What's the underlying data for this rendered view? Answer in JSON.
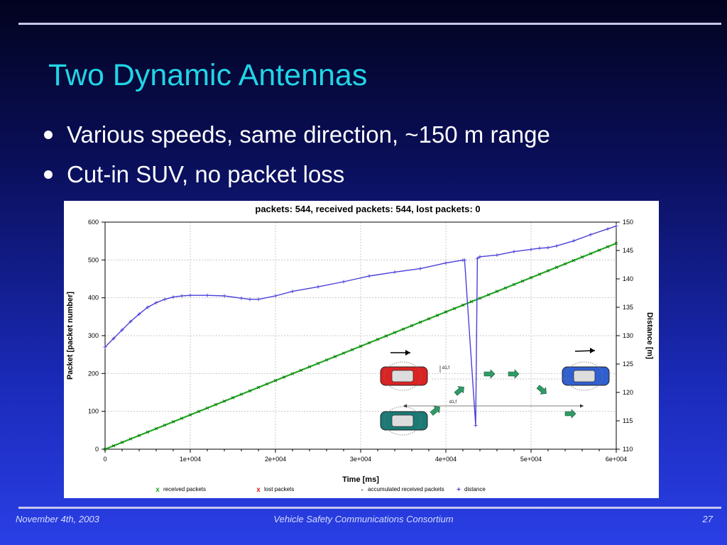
{
  "slide": {
    "title": "Two Dynamic Antennas",
    "bullets": [
      "Various speeds, same direction, ~150 m range",
      "Cut-in SUV, no packet loss"
    ]
  },
  "footer": {
    "date": "November 4th, 2003",
    "org": "Vehicle Safety Communications Consortium",
    "page": "27"
  },
  "colors": {
    "title": "#21d4e6",
    "received": "#22aa22",
    "distance": "#4a3fd8",
    "lost": "#dd2222",
    "accumulated": "#555555"
  },
  "chart_data": {
    "type": "line",
    "title": "packets: 544, received packets: 544, lost packets: 0",
    "xlabel": "Time [ms]",
    "ylabel": "Packet [packet number]",
    "y2label": "Distance [m]",
    "xlim": [
      0,
      60000
    ],
    "ylim": [
      0,
      600
    ],
    "y2lim": [
      110,
      150
    ],
    "x_ticks": [
      0,
      10000,
      20000,
      30000,
      40000,
      50000,
      60000
    ],
    "x_tick_labels": [
      "0",
      "1e+004",
      "2e+004",
      "3e+004",
      "4e+004",
      "5e+004",
      "6e+004"
    ],
    "y_ticks": [
      0,
      100,
      200,
      300,
      400,
      500,
      600
    ],
    "y_tick_labels": [
      "0",
      "100",
      "200",
      "300",
      "400",
      "500",
      "600"
    ],
    "y2_ticks": [
      110,
      115,
      120,
      125,
      130,
      135,
      140,
      145,
      150
    ],
    "y2_tick_labels": [
      "110",
      "115",
      "120",
      "125",
      "130",
      "135",
      "140",
      "145",
      "150"
    ],
    "grid": true,
    "legend_position": "bottom",
    "series": [
      {
        "name": "received packets",
        "axis": "left",
        "marker": "x",
        "x": [
          0,
          60000
        ],
        "y": [
          0,
          544
        ]
      },
      {
        "name": "lost packets",
        "axis": "left",
        "marker": "x",
        "x": [],
        "y": []
      },
      {
        "name": "accumulated received packets",
        "axis": "left",
        "marker": "-",
        "x": [],
        "y": []
      },
      {
        "name": "distance",
        "axis": "right",
        "marker": "+",
        "x": [
          0,
          1000,
          2000,
          3000,
          4000,
          5000,
          6000,
          7000,
          8000,
          9000,
          10000,
          12000,
          14000,
          16000,
          17000,
          18000,
          20000,
          22000,
          25000,
          28000,
          31000,
          34000,
          37000,
          40000,
          42000,
          42200,
          43500,
          43700,
          44000,
          46000,
          48000,
          50000,
          51000,
          52000,
          53000,
          55000,
          57000,
          59000,
          60000
        ],
        "y": [
          128.0,
          129.5,
          131.0,
          132.5,
          133.8,
          135.0,
          135.8,
          136.4,
          136.8,
          137.0,
          137.1,
          137.1,
          137.0,
          136.6,
          136.4,
          136.4,
          137.0,
          137.8,
          138.6,
          139.5,
          140.5,
          141.2,
          141.8,
          142.8,
          143.3,
          143.3,
          114.2,
          143.6,
          143.9,
          144.2,
          144.8,
          145.2,
          145.4,
          145.5,
          145.8,
          146.7,
          147.8,
          148.8,
          149.3
        ]
      }
    ],
    "diagram_labels": [
      "d1,f",
      "d1,f"
    ]
  }
}
